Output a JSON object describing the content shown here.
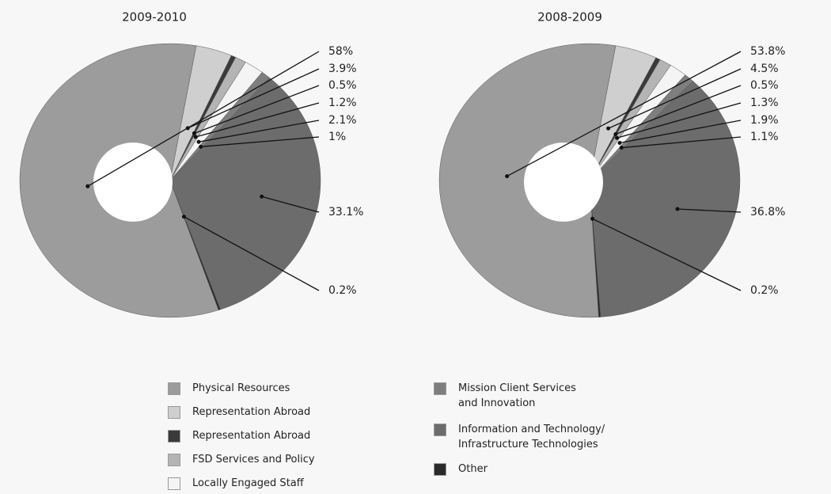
{
  "chart_data": [
    {
      "type": "pie",
      "title": "2009-2010",
      "values": [
        58,
        3.9,
        0.5,
        1.2,
        2.1,
        1,
        33.1,
        0.2
      ],
      "value_labels": [
        "58%",
        "3.9%",
        "0.5%",
        "1.2%",
        "2.1%",
        "1%",
        "33.1%",
        "0.2%"
      ],
      "colors": [
        "#9c9c9c",
        "#cfcfcf",
        "#3a3a3a",
        "#b4b4b4",
        "#f4f4f4",
        "#7e7e7e",
        "#6c6c6c",
        "#2a2a2a"
      ]
    },
    {
      "type": "pie",
      "title": "2008-2009",
      "values": [
        53.8,
        4.5,
        0.5,
        1.3,
        1.9,
        1.1,
        36.8,
        0.2
      ],
      "value_labels": [
        "53.8%",
        "4.5%",
        "0.5%",
        "1.3%",
        "1.9%",
        "1.1%",
        "36.8%",
        "0.2%"
      ],
      "colors": [
        "#9c9c9c",
        "#cfcfcf",
        "#3a3a3a",
        "#b4b4b4",
        "#f4f4f4",
        "#7e7e7e",
        "#6c6c6c",
        "#2a2a2a"
      ]
    }
  ],
  "legend": {
    "labels": [
      "Physical Resources",
      "Representation Abroad",
      "Representation Abroad",
      "FSD Services and Policy",
      "Locally Engaged Staff",
      "Mission Client Services\nand Innovation",
      "Information and Technology/\nInfrastructure Technologies",
      "Other"
    ],
    "colors": [
      "#9c9c9c",
      "#cfcfcf",
      "#3a3a3a",
      "#b4b4b4",
      "#f4f4f4",
      "#7e7e7e",
      "#6c6c6c",
      "#2a2a2a"
    ]
  }
}
